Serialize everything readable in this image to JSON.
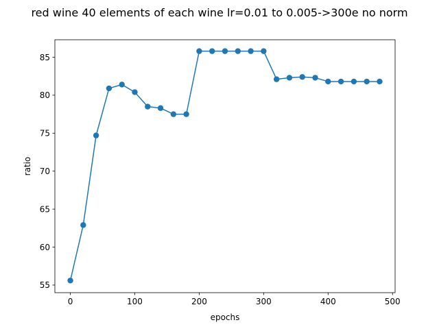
{
  "chart_data": {
    "type": "line",
    "title": "red wine 40 elements of each wine lr=0.01 to 0.005->300e no norm",
    "xlabel": "epochs",
    "ylabel": "ratio",
    "xlim": [
      -24,
      504
    ],
    "ylim": [
      54.0,
      87.3
    ],
    "xticks": [
      0,
      100,
      200,
      300,
      400,
      500
    ],
    "yticks": [
      55,
      60,
      65,
      70,
      75,
      80,
      85
    ],
    "grid": false,
    "legend": "none",
    "colors": {
      "series": "#1f77b4"
    },
    "series": [
      {
        "marker": "circle",
        "x": [
          0,
          20,
          40,
          60,
          80,
          100,
          120,
          140,
          160,
          180,
          200,
          220,
          240,
          260,
          280,
          300,
          320,
          340,
          360,
          380,
          400,
          420,
          440,
          460,
          480
        ],
        "y": [
          55.6,
          62.9,
          74.7,
          80.9,
          81.4,
          80.4,
          78.5,
          78.3,
          77.5,
          77.5,
          85.8,
          85.8,
          85.8,
          85.8,
          85.8,
          85.8,
          82.1,
          82.3,
          82.4,
          82.3,
          81.8,
          81.8,
          81.8,
          81.8,
          81.8
        ]
      }
    ]
  }
}
